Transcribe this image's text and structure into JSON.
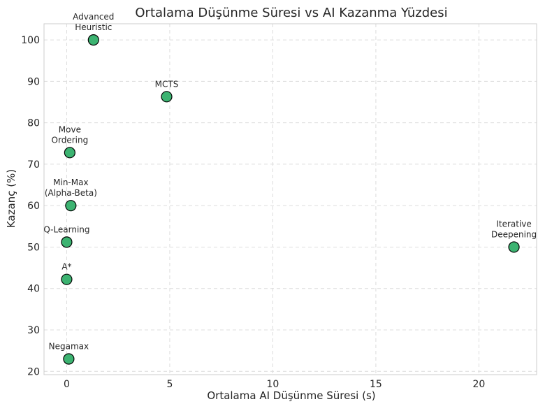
{
  "chart_data": {
    "type": "scatter",
    "title": "Ortalama Düşünme Süresi vs AI Kazanma Yüzdesi",
    "xlabel": "Ortalama AI Düşünme Süresi (s)",
    "ylabel": "Kazanç (%)",
    "xlim": [
      -1.1,
      22.8
    ],
    "ylim": [
      19.2,
      103.9
    ],
    "xticks": [
      0,
      5,
      10,
      15,
      20
    ],
    "yticks": [
      20,
      30,
      40,
      50,
      60,
      70,
      80,
      90,
      100
    ],
    "grid": true,
    "point_color": "#3cb371",
    "point_edge_color": "#000000",
    "points": [
      {
        "label": [
          "Advanced",
          "Heuristic"
        ],
        "x": 1.3,
        "y": 100.0
      },
      {
        "label": [
          "MCTS"
        ],
        "x": 4.85,
        "y": 86.3
      },
      {
        "label": [
          "Move",
          "Ordering"
        ],
        "x": 0.15,
        "y": 72.8
      },
      {
        "label": [
          "Min-Max",
          "(Alpha-Beta)"
        ],
        "x": 0.2,
        "y": 60.0
      },
      {
        "label": [
          "Q-Learning"
        ],
        "x": 0.0,
        "y": 51.2
      },
      {
        "label": [
          "Iterative",
          "Deepening"
        ],
        "x": 21.7,
        "y": 50.0
      },
      {
        "label": [
          "A*"
        ],
        "x": 0.0,
        "y": 42.2
      },
      {
        "label": [
          "Negamax"
        ],
        "x": 0.1,
        "y": 23.0
      }
    ]
  }
}
